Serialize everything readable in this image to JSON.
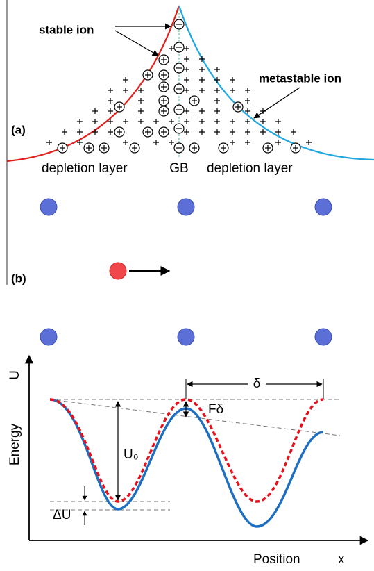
{
  "panel_a": {
    "label": "(a)",
    "stable_ion": "stable ion",
    "metastable_ion": "metastable ion",
    "regions": [
      "depletion layer",
      "GB",
      "depletion layer"
    ]
  },
  "panel_b": {
    "label": "(b)"
  },
  "energy_plot": {
    "y_label": "Energy",
    "y_symbol": "U",
    "x_label": "Position",
    "x_symbol": "x",
    "delta": "δ",
    "f_delta": "Fδ",
    "u0": "U₀",
    "delta_u": "ΔU"
  }
}
